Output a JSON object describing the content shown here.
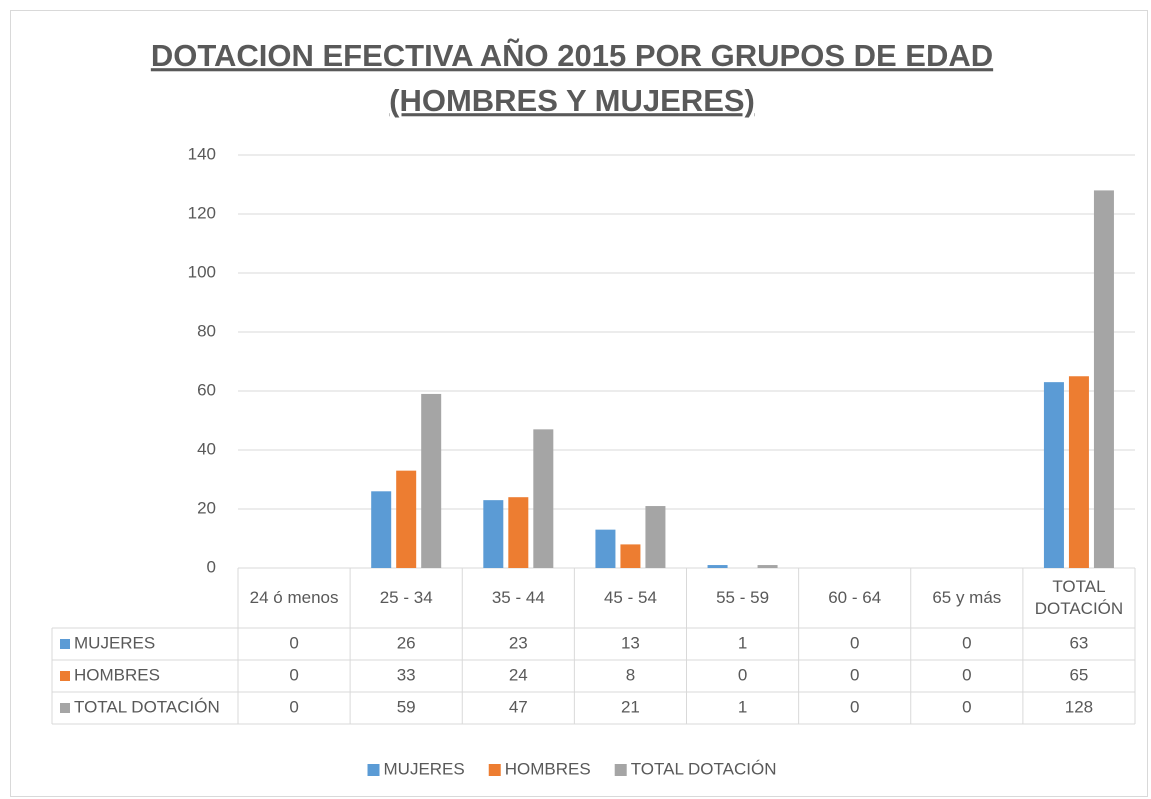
{
  "chart_data": {
    "type": "bar",
    "title": "DOTACION EFECTIVA AÑO 2015 POR GRUPOS DE EDAD",
    "subtitle": "(HOMBRES Y MUJERES)",
    "categories": [
      "24 ó menos",
      "25 - 34",
      "35 - 44",
      "45 - 54",
      "55 - 59",
      "60 - 64",
      "65 y más",
      "TOTAL DOTACIÓN"
    ],
    "series": [
      {
        "name": "MUJERES",
        "color": "#5b9bd5",
        "values": [
          0,
          26,
          23,
          13,
          1,
          0,
          0,
          63
        ]
      },
      {
        "name": "HOMBRES",
        "color": "#ed7d31",
        "values": [
          0,
          33,
          24,
          8,
          0,
          0,
          0,
          65
        ]
      },
      {
        "name": "TOTAL DOTACIÓN",
        "color": "#a5a5a5",
        "values": [
          0,
          59,
          47,
          21,
          1,
          0,
          0,
          128
        ]
      }
    ],
    "ylim": [
      0,
      140
    ],
    "yticks": [
      0,
      20,
      40,
      60,
      80,
      100,
      120,
      140
    ],
    "grid": true,
    "legend": "bottom"
  }
}
